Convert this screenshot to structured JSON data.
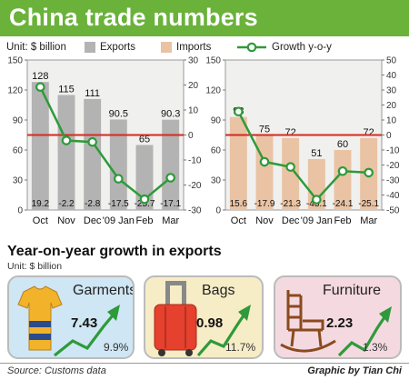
{
  "title": "China trade numbers",
  "legend": {
    "unit": "Unit: $ billion",
    "exports": "Exports",
    "imports": "Imports",
    "growth": "Growth y-o-y"
  },
  "colors": {
    "title_bg": "#6ab23a",
    "exports": "#b3b3b3",
    "imports": "#e9c3a4",
    "growth": "#2e9a3a",
    "zero_line": "#d42a1e",
    "panel_bg": "#f0f0ee"
  },
  "chart_data": [
    {
      "type": "bar",
      "categories": [
        "Oct",
        "Nov",
        "Dec",
        "'09 Jan",
        "Feb",
        "Mar"
      ],
      "series": [
        {
          "name": "Exports",
          "values": [
            128,
            115,
            111,
            90.5,
            65,
            90.3
          ]
        },
        {
          "name": "Growth y-o-y",
          "type": "line",
          "axis": "right",
          "values": [
            19.2,
            -2.2,
            -2.8,
            -17.5,
            -25.7,
            -17.1
          ]
        }
      ],
      "value_labels": [
        "128",
        "115",
        "111",
        "90.5",
        "65",
        "90.3"
      ],
      "growth_labels": [
        "19.2",
        "-2.2",
        "-2.8",
        "-17.5",
        "-25.7",
        "-17.1"
      ],
      "ylim": [
        0,
        150
      ],
      "yticks": [
        0,
        30,
        60,
        90,
        120,
        150
      ],
      "y2lim": [
        -30,
        30
      ],
      "y2ticks": [
        -30,
        -20,
        -10,
        0,
        10,
        20,
        30
      ]
    },
    {
      "type": "bar",
      "categories": [
        "Oct",
        "Nov",
        "Dec",
        "'09 Jan",
        "Feb",
        "Mar"
      ],
      "series": [
        {
          "name": "Imports",
          "values": [
            93,
            75,
            72,
            51,
            60,
            72
          ]
        },
        {
          "name": "Growth y-o-y",
          "type": "line",
          "axis": "right",
          "values": [
            15.6,
            -17.9,
            -21.3,
            -43.1,
            -24.1,
            -25.1
          ]
        }
      ],
      "value_labels": [
        "93",
        "75",
        "72",
        "51",
        "60",
        "72"
      ],
      "growth_labels": [
        "15.6",
        "-17.9",
        "-21.3",
        "-43.1",
        "-24.1",
        "-25.1"
      ],
      "ylim": [
        0,
        150
      ],
      "yticks": [
        0,
        30,
        60,
        90,
        120,
        150
      ],
      "y2lim": [
        -50,
        50
      ],
      "y2ticks": [
        -50,
        -40,
        -30,
        -20,
        -10,
        0,
        10,
        20,
        30,
        40,
        50
      ]
    }
  ],
  "exports_growth": {
    "title": "Year-on-year growth in exports",
    "unit": "Unit: $ billion",
    "items": [
      {
        "label": "Garments",
        "value": "7.43",
        "pct": "9.9%",
        "bg": "#cfe6f4",
        "icon": "tshirt-icon"
      },
      {
        "label": "Bags",
        "value": "0.98",
        "pct": "11.7%",
        "bg": "#f6ecc6",
        "icon": "suitcase-icon"
      },
      {
        "label": "Furniture",
        "value": "2.23",
        "pct": "1.3%",
        "bg": "#f4d9e0",
        "icon": "rocking-chair-icon"
      }
    ]
  },
  "footer": {
    "source": "Source: Customs data",
    "credit": "Graphic by Tian Chi"
  }
}
